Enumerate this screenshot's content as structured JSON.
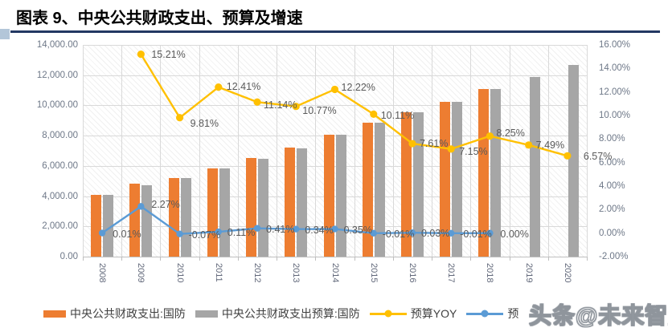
{
  "header": {
    "title": "图表 9、中央公共财政支出、预算及增速"
  },
  "watermark": {
    "text": "头条@未来智库"
  },
  "colors": {
    "expenditure_bar": "#ED7D31",
    "budget_bar": "#A6A6A6",
    "budget_yoy_line": "#FFC000",
    "deviation_line": "#5B9BD5",
    "title_rule": "#233862"
  },
  "chart_data": {
    "type": "bar",
    "subtype": "combo bar+line, dual axis",
    "title": "中央公共财政支出、预算及增速",
    "xlabel": "",
    "ylabel": "",
    "grid": true,
    "legend_position": "bottom",
    "categories": [
      "2008",
      "2009",
      "2010",
      "2011",
      "2012",
      "2013",
      "2014",
      "2015",
      "2016",
      "2017",
      "2018",
      "2019",
      "2020"
    ],
    "left_axis": {
      "min": 0,
      "max": 14000,
      "ticks": [
        "0.00",
        "2,000.00",
        "4,000.00",
        "6,000.00",
        "8,000.00",
        "10,000.00",
        "12,000.00",
        "14,000.00"
      ]
    },
    "right_axis": {
      "min": -2,
      "max": 16,
      "ticks": [
        "-2.00%",
        "0.00%",
        "2.00%",
        "4.00%",
        "6.00%",
        "8.00%",
        "10.00%",
        "12.00%",
        "14.00%",
        "16.00%"
      ]
    },
    "series": [
      {
        "name": "中央公共财政支出:国防",
        "type": "bar",
        "axis": "left",
        "color": "#ED7D31",
        "values": [
          4100,
          4830,
          5182,
          5836,
          6506,
          7201,
          8082,
          8868,
          9546,
          10224,
          11070,
          null,
          null
        ]
      },
      {
        "name": "中央公共财政支出预算:国防",
        "type": "bar",
        "axis": "left",
        "color": "#A6A6A6",
        "values": [
          4100,
          4723,
          5186,
          5830,
          6479,
          7177,
          8054,
          8868,
          9543,
          10225,
          11070,
          11899,
          12680
        ]
      },
      {
        "name": "预算YOY",
        "type": "line",
        "axis": "right",
        "color": "#FFC000",
        "values": [
          null,
          15.21,
          9.81,
          12.41,
          11.14,
          10.77,
          12.22,
          10.11,
          7.61,
          7.15,
          8.25,
          7.49,
          6.57
        ],
        "labels": [
          "",
          "15.21%",
          "9.81%",
          "12.41%",
          "11.14%",
          "10.77%",
          "12.22%",
          "10.11%",
          "7.61%",
          "7.15%",
          "8.25%",
          "7.49%",
          "6.57%"
        ]
      },
      {
        "name": "预",
        "type": "line",
        "axis": "right",
        "color": "#5B9BD5",
        "values": [
          0.01,
          2.27,
          -0.07,
          0.11,
          0.41,
          0.34,
          0.35,
          -0.01,
          0.03,
          -0.01,
          0.0,
          null,
          null
        ],
        "labels": [
          "0.01%",
          "2.27%",
          "-0.07%",
          "0.11%",
          "0.41%",
          "0.34%",
          "0.35%",
          "-0.01%",
          "0.03%",
          "-0.01%",
          "0.00%",
          "",
          ""
        ]
      }
    ]
  }
}
